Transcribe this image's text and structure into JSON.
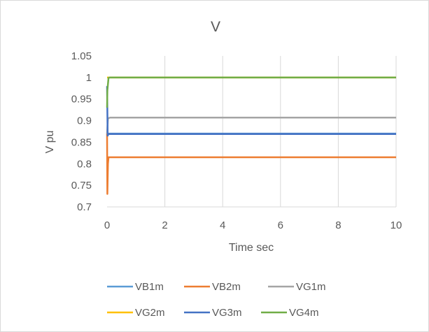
{
  "chart_data": {
    "type": "line",
    "title": "V",
    "xlabel": "Time sec",
    "ylabel": "V pu",
    "xlim": [
      0,
      10
    ],
    "ylim": [
      0.7,
      1.05
    ],
    "x_ticks": [
      0,
      2,
      4,
      6,
      8,
      10
    ],
    "x_tick_labels": [
      "0",
      "2",
      "4",
      "6",
      "8",
      "10"
    ],
    "y_ticks": [
      0.7,
      0.75,
      0.8,
      0.85,
      0.9,
      0.95,
      1,
      1.05
    ],
    "y_tick_labels": [
      "0.7",
      "0.75",
      "0.8",
      "0.85",
      "0.9",
      "0.95",
      "1",
      "1.05"
    ],
    "grid": "vertical",
    "legend_position": "bottom",
    "series": [
      {
        "name": "VB1m",
        "color": "#5b9bd5",
        "x": [
          0,
          0.05,
          10
        ],
        "y": [
          0.87,
          0.87,
          0.87
        ]
      },
      {
        "name": "VB2m",
        "color": "#ed7d31",
        "x": [
          0,
          0.01,
          0.03,
          0.05,
          0.1,
          10
        ],
        "y": [
          0.87,
          0.73,
          0.8,
          0.815,
          0.815,
          0.815
        ]
      },
      {
        "name": "VG1m",
        "color": "#a5a5a5",
        "x": [
          0,
          0.03,
          0.1,
          10
        ],
        "y": [
          0.87,
          0.905,
          0.907,
          0.907
        ]
      },
      {
        "name": "VG2m",
        "color": "#ffc000",
        "x": [
          0,
          0.05,
          10
        ],
        "y": [
          1.0,
          1.0,
          1.0
        ]
      },
      {
        "name": "VG3m",
        "color": "#4472c4",
        "x": [
          0,
          0.02,
          0.05,
          10
        ],
        "y": [
          0.98,
          0.865,
          0.869,
          0.869
        ]
      },
      {
        "name": "VG4m",
        "color": "#70ad47",
        "x": [
          0,
          0.01,
          0.05,
          0.1,
          10
        ],
        "y": [
          0.93,
          0.97,
          0.999,
          1.0,
          1.0
        ]
      }
    ]
  }
}
